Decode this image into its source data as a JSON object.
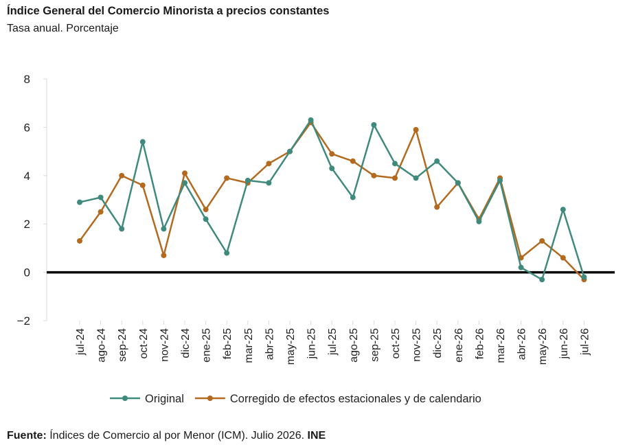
{
  "header": {
    "title": "Índice General del Comercio Minorista a precios constantes",
    "subtitle": "Tasa anual. Porcentaje"
  },
  "footer": {
    "source_label": "Fuente:",
    "source_text": " Índices de Comercio al por Menor (ICM). Julio 2026. ",
    "source_org": "INE"
  },
  "chart_data": {
    "type": "line",
    "title": "Índice General del Comercio Minorista a precios constantes",
    "subtitle": "Tasa anual. Porcentaje",
    "xlabel": "",
    "ylabel": "",
    "categories": [
      "jul-24",
      "ago-24",
      "sep-24",
      "oct-24",
      "nov-24",
      "dic-24",
      "ene-25",
      "feb-25",
      "mar-25",
      "abr-25",
      "may-25",
      "jun-25",
      "jul-25",
      "ago-25",
      "sep-25",
      "oct-25",
      "nov-25",
      "dic-25",
      "ene-26",
      "feb-26",
      "mar-26",
      "abr-26",
      "may-26",
      "jun-26",
      "jul-26"
    ],
    "ylim": [
      -2,
      8
    ],
    "yticks": [
      -2,
      0,
      2,
      4,
      6,
      8
    ],
    "grid": false,
    "legend_position": "bottom",
    "series": [
      {
        "name": "Original",
        "color": "#3f8a7c",
        "values": [
          2.9,
          3.1,
          1.8,
          5.4,
          1.8,
          3.7,
          2.2,
          0.8,
          3.8,
          3.7,
          5.0,
          6.3,
          4.3,
          3.1,
          6.1,
          4.5,
          3.9,
          4.6,
          3.7,
          2.1,
          3.8,
          0.2,
          -0.3,
          2.6,
          -0.2
        ]
      },
      {
        "name": "Corregido de efectos estacionales y de calendario",
        "color": "#b36a1e",
        "values": [
          1.3,
          2.5,
          4.0,
          3.6,
          0.7,
          4.1,
          2.6,
          3.9,
          3.7,
          4.5,
          5.0,
          6.2,
          4.9,
          4.6,
          4.0,
          3.9,
          5.9,
          2.7,
          3.7,
          2.2,
          3.9,
          0.6,
          1.3,
          0.6,
          -0.3
        ]
      }
    ]
  }
}
